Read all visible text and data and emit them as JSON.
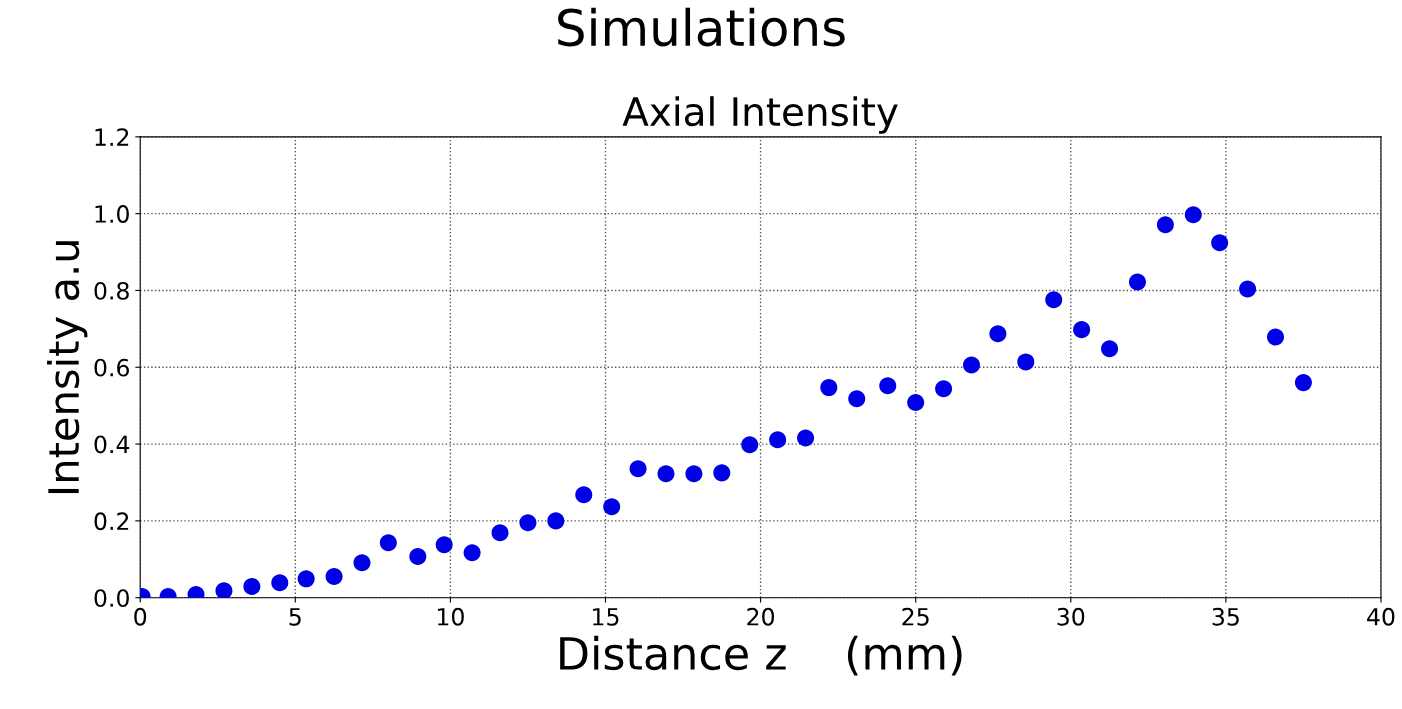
{
  "chart_data": {
    "type": "scatter",
    "title": "Simulations",
    "subtitle": "Axial Intensity",
    "xlabel": "Distance z    (mm)",
    "ylabel": "Intensity a.u",
    "series": [
      {
        "color": "#0000e6",
        "x": [
          0.06,
          0.9,
          1.8,
          2.7,
          3.6,
          4.5,
          5.35,
          6.25,
          7.15,
          8.0,
          8.95,
          9.8,
          10.7,
          11.6,
          12.5,
          13.4,
          14.3,
          15.2,
          16.05,
          16.95,
          17.85,
          18.75,
          19.65,
          20.55,
          21.45,
          22.2,
          23.1,
          24.1,
          25.0,
          25.9,
          26.8,
          27.65,
          28.55,
          29.45,
          30.35,
          31.25,
          32.15,
          33.05,
          33.95,
          34.8,
          35.7,
          36.6,
          37.5
        ],
        "values": [
          0.003,
          0.003,
          0.008,
          0.018,
          0.029,
          0.039,
          0.049,
          0.055,
          0.091,
          0.143,
          0.107,
          0.138,
          0.117,
          0.169,
          0.195,
          0.2,
          0.268,
          0.237,
          0.336,
          0.323,
          0.323,
          0.325,
          0.398,
          0.411,
          0.416,
          0.547,
          0.518,
          0.552,
          0.508,
          0.544,
          0.606,
          0.687,
          0.614,
          0.776,
          0.698,
          0.648,
          0.822,
          0.971,
          0.997,
          0.924,
          0.804,
          0.679,
          0.56
        ]
      }
    ],
    "xlim": [
      0,
      40
    ],
    "xticks": [
      0,
      5,
      10,
      15,
      20,
      25,
      30,
      35,
      40
    ],
    "ylim": [
      0,
      1.2
    ],
    "yticks": [
      {
        "value": 0,
        "label": "0.0"
      },
      {
        "value": 0.2,
        "label": "0.2"
      },
      {
        "value": 0.4,
        "label": "0.4"
      },
      {
        "value": 0.6,
        "label": "0.6"
      },
      {
        "value": 0.8,
        "label": "0.8"
      },
      {
        "value": 1.0,
        "label": "1.0"
      },
      {
        "value": 1.2,
        "label": "1.2"
      }
    ],
    "grid": true,
    "marker": "circle"
  }
}
